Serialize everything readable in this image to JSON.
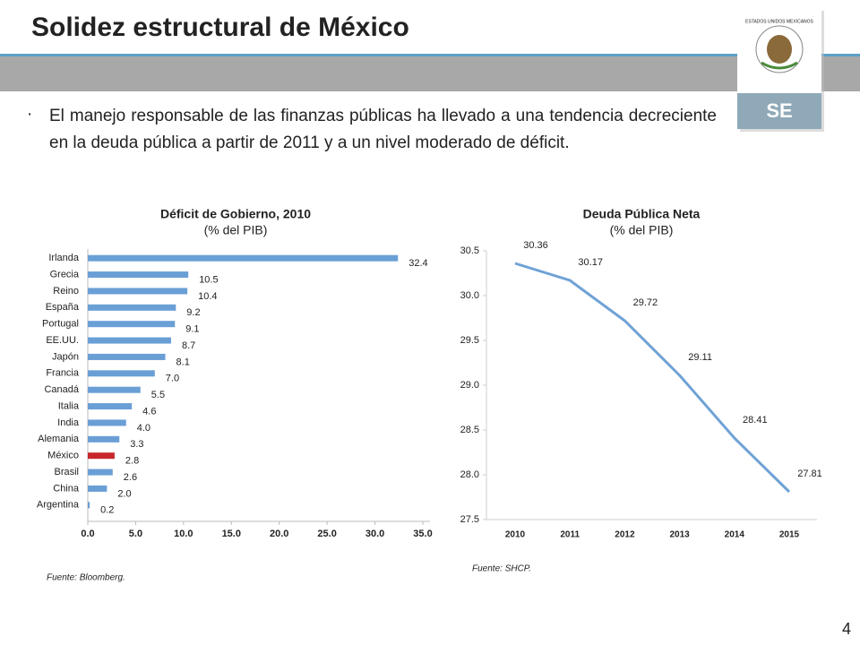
{
  "title": "Solidez estructural de México",
  "bullet": "El manejo responsable de las finanzas públicas ha llevado a una tendencia decreciente en la deuda pública a partir de 2011 y a un nivel moderado de déficit.",
  "logo": {
    "emblem_text": "ESTADOS UNIDOS MEXICANOS",
    "label": "SE"
  },
  "page_number": "4",
  "chart_data": [
    {
      "type": "hbar",
      "title": "Déficit de Gobierno, 2010",
      "subtitle": "(% del PIB)",
      "source": "Fuente: Bloomberg.",
      "categories": [
        "Irlanda",
        "Grecia",
        "Reino",
        "España",
        "Portugal",
        "EE.UU.",
        "Japón",
        "Francia",
        "Canadá",
        "Italia",
        "India",
        "Alemania",
        "México",
        "Brasil",
        "China",
        "Argentina"
      ],
      "values": [
        32.4,
        10.5,
        10.4,
        9.2,
        9.1,
        8.7,
        8.1,
        7.0,
        5.5,
        4.6,
        4.0,
        3.3,
        2.8,
        2.6,
        2.0,
        0.2
      ],
      "value_labels": [
        "32.4",
        "10.5",
        "10.4",
        "9.2",
        "9.1",
        "8.7",
        "8.1",
        "7.0",
        "5.5",
        "4.6",
        "4.0",
        "3.3",
        "2.8",
        "2.6",
        "2.0",
        "0.2"
      ],
      "colors": [
        "#6a9fd6",
        "#6a9fd6",
        "#6a9fd6",
        "#6a9fd6",
        "#6a9fd6",
        "#6a9fd6",
        "#6a9fd6",
        "#6a9fd6",
        "#6a9fd6",
        "#6a9fd6",
        "#6a9fd6",
        "#6a9fd6",
        "#c8282b",
        "#6a9fd6",
        "#6a9fd6",
        "#6a9fd6"
      ],
      "xlim": [
        0,
        35
      ],
      "xticks": [
        {
          "value": 0,
          "label": "0.0"
        },
        {
          "value": 5,
          "label": "5.0"
        },
        {
          "value": 10,
          "label": "10.0"
        },
        {
          "value": 15,
          "label": "15.0"
        },
        {
          "value": 20,
          "label": "20.0"
        },
        {
          "value": 25,
          "label": "25.0"
        },
        {
          "value": 30,
          "label": "30.0"
        },
        {
          "value": 35,
          "label": "35.0"
        }
      ]
    },
    {
      "type": "line",
      "title": "Deuda Pública Neta",
      "subtitle": "(% del PIB)",
      "source": "Fuente: SHCP.",
      "categories": [
        "2010",
        "2011",
        "2012",
        "2013",
        "2014",
        "2015"
      ],
      "values": [
        30.36,
        30.17,
        29.72,
        29.11,
        28.41,
        27.81
      ],
      "color": "#6fa2d6",
      "ylim": [
        27.5,
        30.5
      ],
      "yticks": [
        27.5,
        {
          "value": 28,
          "label": "28.0"
        },
        28.5,
        {
          "value": 29,
          "label": "29.0"
        },
        29.5,
        {
          "value": 30,
          "label": "30.0"
        },
        30.5
      ]
    }
  ]
}
